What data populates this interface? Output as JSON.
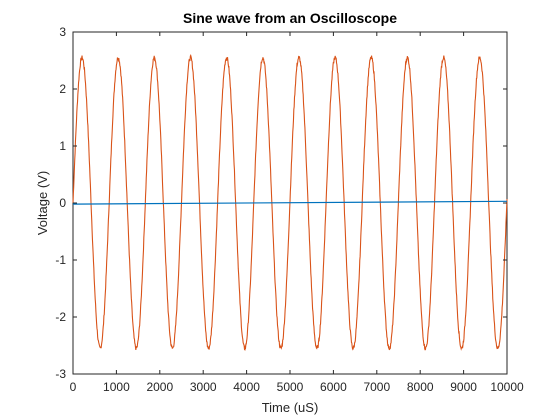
{
  "chart_data": {
    "type": "line",
    "title": "Sine wave from an Oscilloscope",
    "xlabel": "Time (uS)",
    "ylabel": "Voltage (V)",
    "xlim": [
      0,
      10000
    ],
    "ylim": [
      -3,
      3
    ],
    "xticks": [
      0,
      1000,
      2000,
      3000,
      4000,
      5000,
      6000,
      7000,
      8000,
      9000,
      10000
    ],
    "yticks": [
      -3,
      -2,
      -1,
      0,
      1,
      2,
      3
    ],
    "grid": false,
    "legend": "none",
    "series": [
      {
        "color": "#0072BD",
        "x": [
          0,
          10000
        ],
        "y": [
          -0.02,
          0.03
        ]
      },
      {
        "color": "#D95319",
        "amplitude": 2.55,
        "period_us": 833,
        "peak_times_us": [
          208,
          1042,
          1875,
          2708,
          3542,
          4375,
          5208,
          6042,
          6875,
          7708,
          8542,
          9375
        ],
        "trough_times_us": [
          625,
          1458,
          2292,
          3125,
          3958,
          4792,
          5625,
          6458,
          7292,
          8125,
          8958,
          9792
        ],
        "x_start": 0,
        "x_end": 10000
      }
    ]
  }
}
